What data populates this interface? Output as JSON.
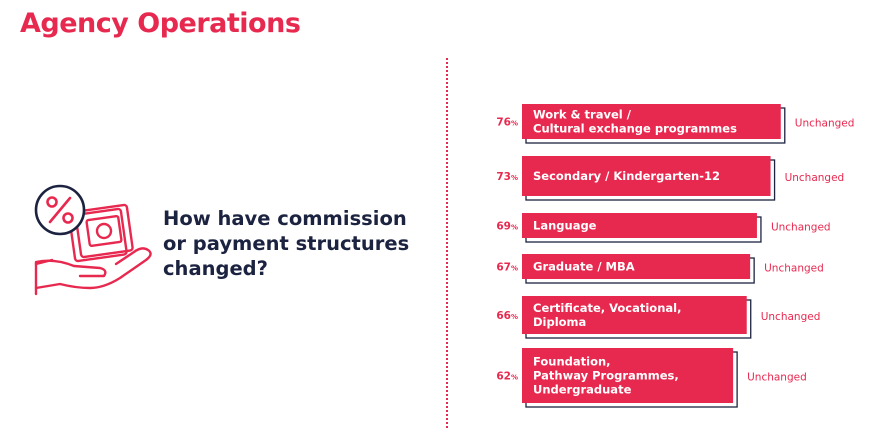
{
  "page": {
    "title": "Agency Operations",
    "question": "How have commission or payment structures changed?"
  },
  "colors": {
    "accent": "#e8294f",
    "text_dark": "#1c2340",
    "shadow": "#1c2340"
  },
  "icons": {
    "illustration": "hand-holding-money-percent-icon"
  },
  "chart_data": {
    "type": "bar",
    "orientation": "horizontal",
    "categories": [
      [
        "Work & travel /",
        "Cultural exchange programmes"
      ],
      [
        "Secondary / Kindergarten-12"
      ],
      [
        "Language"
      ],
      [
        "Graduate / MBA"
      ],
      [
        "Certificate, Vocational,",
        "Diploma"
      ],
      [
        "Foundation,",
        "Pathway Programmes,",
        "Undergraduate"
      ]
    ],
    "values": [
      76,
      73,
      69,
      67,
      66,
      62
    ],
    "value_unit": "%",
    "status_labels": [
      "Unchanged",
      "Unchanged",
      "Unchanged",
      "Unchanged",
      "Unchanged",
      "Unchanged"
    ],
    "title": "",
    "xlabel": "",
    "ylabel": "",
    "grid": false
  }
}
